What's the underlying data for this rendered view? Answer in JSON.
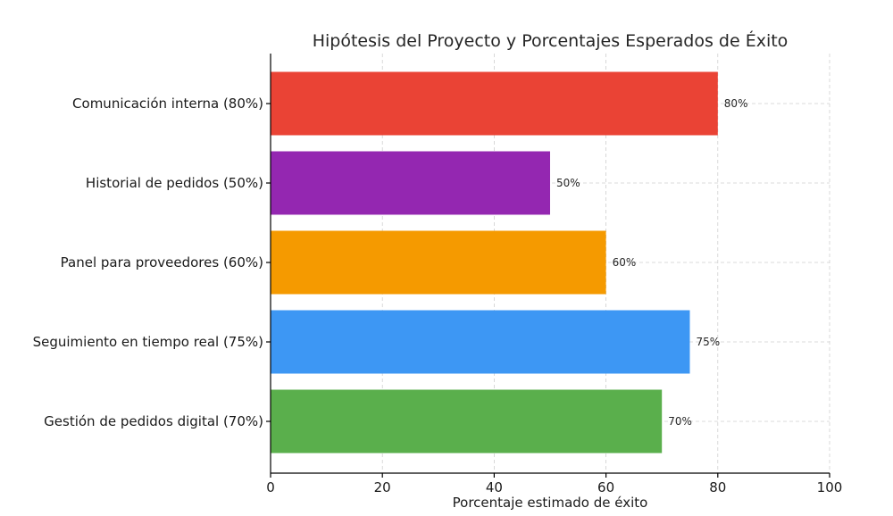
{
  "chart_data": {
    "type": "bar",
    "orientation": "horizontal",
    "title": "Hipótesis del Proyecto y Porcentajes Esperados de Éxito",
    "xlabel": "Porcentaje estimado de éxito",
    "ylabel": "",
    "xlim": [
      0,
      100
    ],
    "x_ticks": [
      0,
      20,
      40,
      60,
      80,
      100
    ],
    "grid": true,
    "categories": [
      "Comunicación interna (80%)",
      "Historial de pedidos (50%)",
      "Panel para proveedores (60%)",
      "Seguimiento en tiempo real (75%)",
      "Gestión de pedidos digital (70%)"
    ],
    "values": [
      80,
      50,
      60,
      75,
      70
    ],
    "data_labels": [
      "80%",
      "50%",
      "60%",
      "75%",
      "70%"
    ],
    "colors": [
      "#ea4335",
      "#9427b1",
      "#f59a00",
      "#3d97f4",
      "#5aaf4c"
    ]
  }
}
